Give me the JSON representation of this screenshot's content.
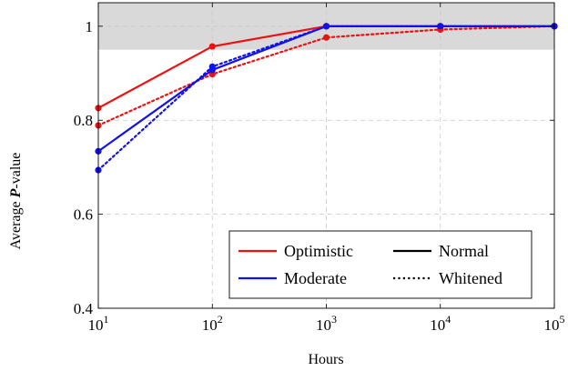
{
  "chart_data": {
    "type": "line",
    "xlabel": "Hours",
    "ylabel_prefix": "Average ",
    "ylabel_symbol": "P",
    "ylabel_suffix": "-value",
    "x_scale": "log10",
    "xlim": [
      10,
      100000
    ],
    "ylim": [
      0.4,
      1.05
    ],
    "x_ticks": [
      {
        "value": 10,
        "base": "10",
        "exponent": "1"
      },
      {
        "value": 100,
        "base": "10",
        "exponent": "2"
      },
      {
        "value": 1000,
        "base": "10",
        "exponent": "3"
      },
      {
        "value": 10000,
        "base": "10",
        "exponent": "4"
      },
      {
        "value": 100000,
        "base": "10",
        "exponent": "5"
      }
    ],
    "y_ticks": [
      {
        "value": 0.4,
        "label": "0.4"
      },
      {
        "value": 0.6,
        "label": "0.6"
      },
      {
        "value": 0.8,
        "label": "0.8"
      },
      {
        "value": 1.0,
        "label": "1"
      }
    ],
    "grid": true,
    "shaded_band": {
      "y_from": 0.95,
      "y_to": 1.05,
      "color": "#d9d9d9"
    },
    "x": [
      10,
      100,
      1000,
      10000,
      100000
    ],
    "series": [
      {
        "name": "Optimistic",
        "style": "Normal",
        "color": "#ee1111",
        "values": [
          0.826,
          0.957,
          1.0,
          1.0,
          1.0
        ]
      },
      {
        "name": "Optimistic",
        "style": "Whitened",
        "color": "#ee1111",
        "values": [
          0.789,
          0.898,
          0.976,
          0.993,
          1.0
        ]
      },
      {
        "name": "Moderate",
        "style": "Normal",
        "color": "#1111ee",
        "values": [
          0.734,
          0.907,
          1.0,
          1.0,
          1.0
        ]
      },
      {
        "name": "Moderate",
        "style": "Whitened",
        "color": "#1111ee",
        "values": [
          0.694,
          0.914,
          1.0,
          1.0,
          1.0
        ]
      }
    ],
    "legend": {
      "placement": "bottom-right",
      "entries": [
        {
          "label": "Optimistic",
          "color": "#ee1111",
          "dash": "solid"
        },
        {
          "label": "Normal",
          "color": "#000000",
          "dash": "solid"
        },
        {
          "label": "Moderate",
          "color": "#1111ee",
          "dash": "solid"
        },
        {
          "label": "Whitened",
          "color": "#000000",
          "dash": "dotted"
        }
      ]
    }
  }
}
